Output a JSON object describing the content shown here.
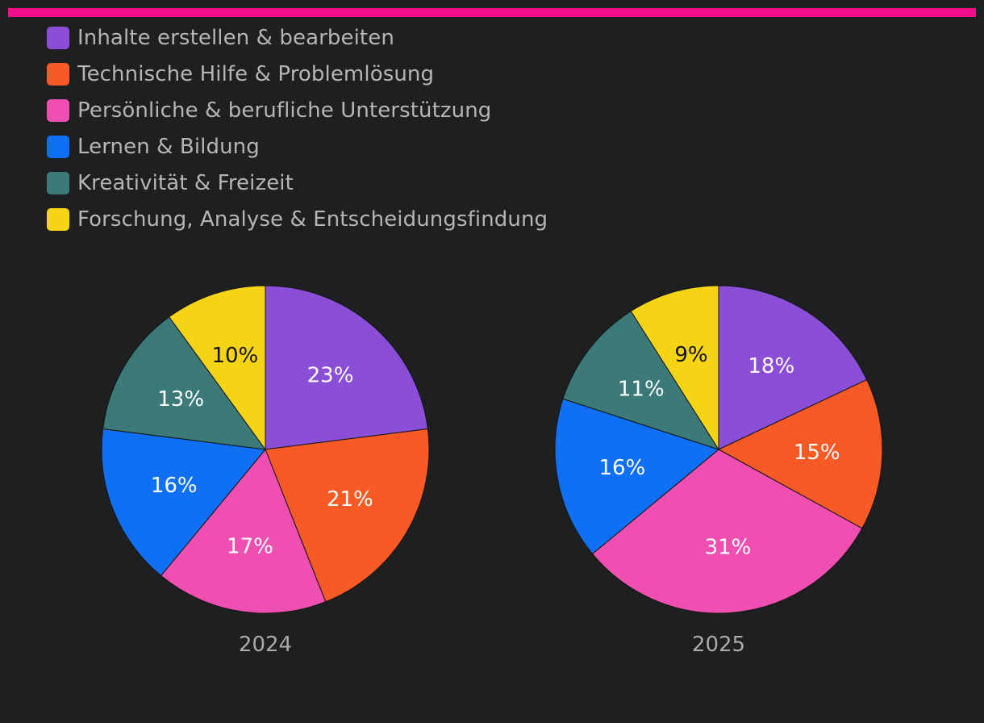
{
  "colors": {
    "background": "#1e1f21",
    "accent": "#f20f8a",
    "legend_text": "#b4b5b7",
    "caption_text": "#a9aaac"
  },
  "chart_data": {
    "type": "pie",
    "categories": [
      {
        "name": "Inhalte erstellen & bearbeiten",
        "color": "#8a4fd6"
      },
      {
        "name": "Technische Hilfe & Problemlösung",
        "color": "#f75a24"
      },
      {
        "name": "Persönliche & berufliche Unterstützung",
        "color": "#ef4fb0"
      },
      {
        "name": "Lernen & Bildung",
        "color": "#1070f5"
      },
      {
        "name": "Kreativität & Freizeit",
        "color": "#3b7a79"
      },
      {
        "name": "Forschung, Analyse & Entscheidungsfindung",
        "color": "#f5d315"
      }
    ],
    "legend_position": "top-left",
    "start_angle": "12 o'clock, clockwise",
    "pies": [
      {
        "label": "2024",
        "values": [
          23,
          21,
          17,
          16,
          13,
          10
        ],
        "value_labels": [
          "23%",
          "21%",
          "17%",
          "16%",
          "13%",
          "10%"
        ]
      },
      {
        "label": "2025",
        "values": [
          18,
          15,
          31,
          16,
          11,
          9
        ],
        "value_labels": [
          "18%",
          "15%",
          "31%",
          "16%",
          "11%",
          "9%"
        ]
      }
    ]
  }
}
